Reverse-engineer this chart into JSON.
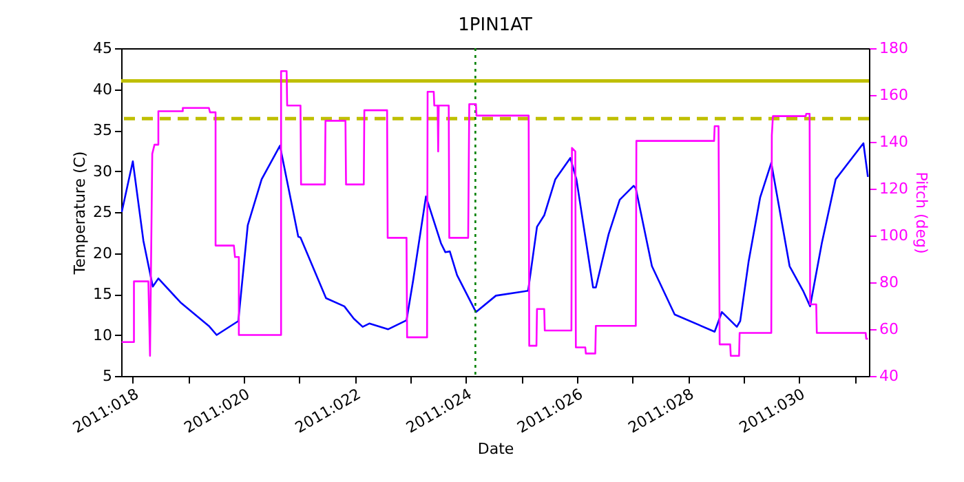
{
  "chart_data": {
    "type": "line",
    "title": "1PIN1AT",
    "xlabel": "Date",
    "ylabel": "Temperature (C)",
    "y2label": "Pitch (deg)",
    "xlim": [
      "2011-01-17T18:58",
      "2011-01-31T06:14"
    ],
    "xticks": [
      {
        "value": "2011-01-18",
        "label": "2011:018"
      },
      {
        "value": "2011-01-19",
        "label": null
      },
      {
        "value": "2011-01-20",
        "label": "2011:020"
      },
      {
        "value": "2011-01-21",
        "label": null
      },
      {
        "value": "2011-01-22",
        "label": "2011:022"
      },
      {
        "value": "2011-01-23",
        "label": null
      },
      {
        "value": "2011-01-24",
        "label": "2011:024"
      },
      {
        "value": "2011-01-25",
        "label": null
      },
      {
        "value": "2011-01-26",
        "label": "2011:026"
      },
      {
        "value": "2011-01-27",
        "label": null
      },
      {
        "value": "2011-01-28",
        "label": "2011:028"
      },
      {
        "value": "2011-01-29",
        "label": null
      },
      {
        "value": "2011-01-30",
        "label": "2011:030"
      },
      {
        "value": "2011-01-31",
        "label": null
      }
    ],
    "ylim": [
      5,
      45
    ],
    "yticks": [
      5,
      10,
      15,
      20,
      25,
      30,
      35,
      40,
      45
    ],
    "y2lim": [
      40,
      180
    ],
    "y2ticks": [
      40,
      60,
      80,
      100,
      120,
      140,
      160,
      180
    ],
    "grid": false,
    "marker": "none",
    "line_style": "solid",
    "series": [
      {
        "color": "#0000ff",
        "x": [
          "2011-01-17T19:12",
          "2011-01-18T00:00",
          "2011-01-18T04:34",
          "2011-01-18T08:38",
          "2011-01-18T11:02",
          "2011-01-18T20:53",
          "2011-01-19T08:53",
          "2011-01-19T12:14",
          "2011-01-19T21:36",
          "2011-01-20T01:41",
          "2011-01-20T07:41",
          "2011-01-20T15:36",
          "2011-01-20T23:31",
          "2011-01-21T00:29",
          "2011-01-21T11:31",
          "2011-01-21T19:26",
          "2011-01-21T23:31",
          "2011-01-22T03:22",
          "2011-01-22T06:14",
          "2011-01-22T14:24",
          "2011-01-22T22:19",
          "2011-01-23T01:12",
          "2011-01-23T06:43",
          "2011-01-23T13:12",
          "2011-01-23T15:07",
          "2011-01-23T17:02",
          "2011-01-23T20:10",
          "2011-01-24T04:19",
          "2011-01-24T12:58",
          "2011-01-25T02:53",
          "2011-01-25T06:43",
          "2011-01-25T09:50",
          "2011-01-25T14:38",
          "2011-01-25T21:07",
          "2011-01-25T23:46",
          "2011-01-26T06:58",
          "2011-01-26T08:10",
          "2011-01-26T13:41",
          "2011-01-26T18:29",
          "2011-01-27T00:29",
          "2011-01-27T01:26",
          "2011-01-27T08:24",
          "2011-01-27T18:14",
          "2011-01-28T11:31",
          "2011-01-28T14:38",
          "2011-01-28T21:07",
          "2011-01-28T22:34",
          "2011-01-29T02:10",
          "2011-01-29T07:12",
          "2011-01-29T12:00",
          "2011-01-29T19:55",
          "2011-01-30T01:55",
          "2011-01-30T04:48",
          "2011-01-30T09:50",
          "2011-01-30T15:50",
          "2011-01-31T03:50",
          "2011-01-31T05:46"
        ],
        "values": [
          25.0,
          31.2,
          21.5,
          15.9,
          16.9,
          13.9,
          11.1,
          10.0,
          11.7,
          23.4,
          29.0,
          33.1,
          22.0,
          21.9,
          14.5,
          13.5,
          12.0,
          11.0,
          11.4,
          10.7,
          11.8,
          16.7,
          26.9,
          21.2,
          20.1,
          20.2,
          17.3,
          12.8,
          14.8,
          15.4,
          23.2,
          24.6,
          29.0,
          31.6,
          29.0,
          15.8,
          15.8,
          22.3,
          26.5,
          28.2,
          27.9,
          18.4,
          12.5,
          10.4,
          12.8,
          11.0,
          11.7,
          18.9,
          26.8,
          31.0,
          18.4,
          15.3,
          13.5,
          21.2,
          29.0,
          33.4,
          29.3
        ]
      },
      {
        "color": "#ff00ff",
        "axis": "y2",
        "x": [
          "2011-01-17T19:12",
          "2011-01-18T00:29",
          "2011-01-18T00:29",
          "2011-01-18T06:43",
          "2011-01-18T07:26",
          "2011-01-18T08:24",
          "2011-01-18T09:22",
          "2011-01-18T11:02",
          "2011-01-18T11:02",
          "2011-01-18T21:36",
          "2011-01-18T21:36",
          "2011-01-19T08:53",
          "2011-01-19T09:22",
          "2011-01-19T11:46",
          "2011-01-19T11:46",
          "2011-01-19T19:41",
          "2011-01-19T20:10",
          "2011-01-19T21:50",
          "2011-01-19T21:50",
          "2011-01-20T16:05",
          "2011-01-20T16:05",
          "2011-01-20T18:29",
          "2011-01-20T18:43",
          "2011-01-21T00:29",
          "2011-01-21T00:43",
          "2011-01-21T11:02",
          "2011-01-21T11:17",
          "2011-01-21T19:55",
          "2011-01-21T20:10",
          "2011-01-22T03:50",
          "2011-01-22T04:05",
          "2011-01-22T13:55",
          "2011-01-22T14:10",
          "2011-01-22T22:19",
          "2011-01-22T22:34",
          "2011-01-23T07:12",
          "2011-01-23T07:26",
          "2011-01-23T10:05",
          "2011-01-23T10:19",
          "2011-01-23T11:46",
          "2011-01-23T12:00",
          "2011-01-23T12:14",
          "2011-01-23T16:34",
          "2011-01-23T16:48",
          "2011-01-24T00:58",
          "2011-01-24T01:26",
          "2011-01-24T04:19",
          "2011-01-24T04:34",
          "2011-01-25T03:07",
          "2011-01-25T03:22",
          "2011-01-25T06:29",
          "2011-01-25T06:43",
          "2011-01-25T09:50",
          "2011-01-25T10:05",
          "2011-01-25T21:36",
          "2011-01-25T21:50",
          "2011-01-25T23:17",
          "2011-01-25T23:31",
          "2011-01-26T03:36",
          "2011-01-26T03:50",
          "2011-01-26T07:55",
          "2011-01-26T08:10",
          "2011-01-27T01:26",
          "2011-01-27T01:41",
          "2011-01-28T11:17",
          "2011-01-28T11:31",
          "2011-01-28T13:12",
          "2011-01-28T13:41",
          "2011-01-28T18:14",
          "2011-01-28T18:29",
          "2011-01-28T22:05",
          "2011-01-28T22:19",
          "2011-01-29T12:00",
          "2011-01-29T12:14",
          "2011-01-29T12:43",
          "2011-01-30T02:53",
          "2011-01-30T03:07",
          "2011-01-30T04:34",
          "2011-01-30T04:48",
          "2011-01-30T07:26",
          "2011-01-30T07:41",
          "2011-01-31T04:48",
          "2011-01-31T05:02",
          "2011-01-31T05:46"
        ],
        "values": [
          54.5,
          54.5,
          80.4,
          80.4,
          48.6,
          134.9,
          138.8,
          138.8,
          153.1,
          153.1,
          154.5,
          154.5,
          152.6,
          152.6,
          95.7,
          95.7,
          90.8,
          90.8,
          57.5,
          57.5,
          170.2,
          170.2,
          155.5,
          155.5,
          121.8,
          121.8,
          149,
          149,
          121.8,
          121.8,
          153.5,
          153.5,
          99,
          99,
          56.5,
          56.5,
          161.4,
          161.4,
          155.5,
          155.5,
          135.9,
          155.5,
          155.5,
          99,
          99,
          156.1,
          156.1,
          151.2,
          151.2,
          52.9,
          52.9,
          68.6,
          68.6,
          59.4,
          59.4,
          137.4,
          135.9,
          52.2,
          52.2,
          49.6,
          49.6,
          61.4,
          61.4,
          140.4,
          140.4,
          146.7,
          146.7,
          53.5,
          53.5,
          48.6,
          48.6,
          58.4,
          58.4,
          142.8,
          151,
          151,
          152,
          152,
          70.6,
          70.6,
          58.4,
          58.4,
          55.9,
          55.9
        ]
      }
    ],
    "ref_lines": [
      {
        "axis": "y",
        "value": 41.0,
        "color": "#bfbf00",
        "line_style": "solid"
      },
      {
        "axis": "y",
        "value": 36.4,
        "color": "#bfbf00",
        "line_style": "dashed"
      },
      {
        "axis": "x",
        "value": "2011-01-24T04:05",
        "color": "#008000",
        "line_style": "dotted"
      }
    ]
  }
}
